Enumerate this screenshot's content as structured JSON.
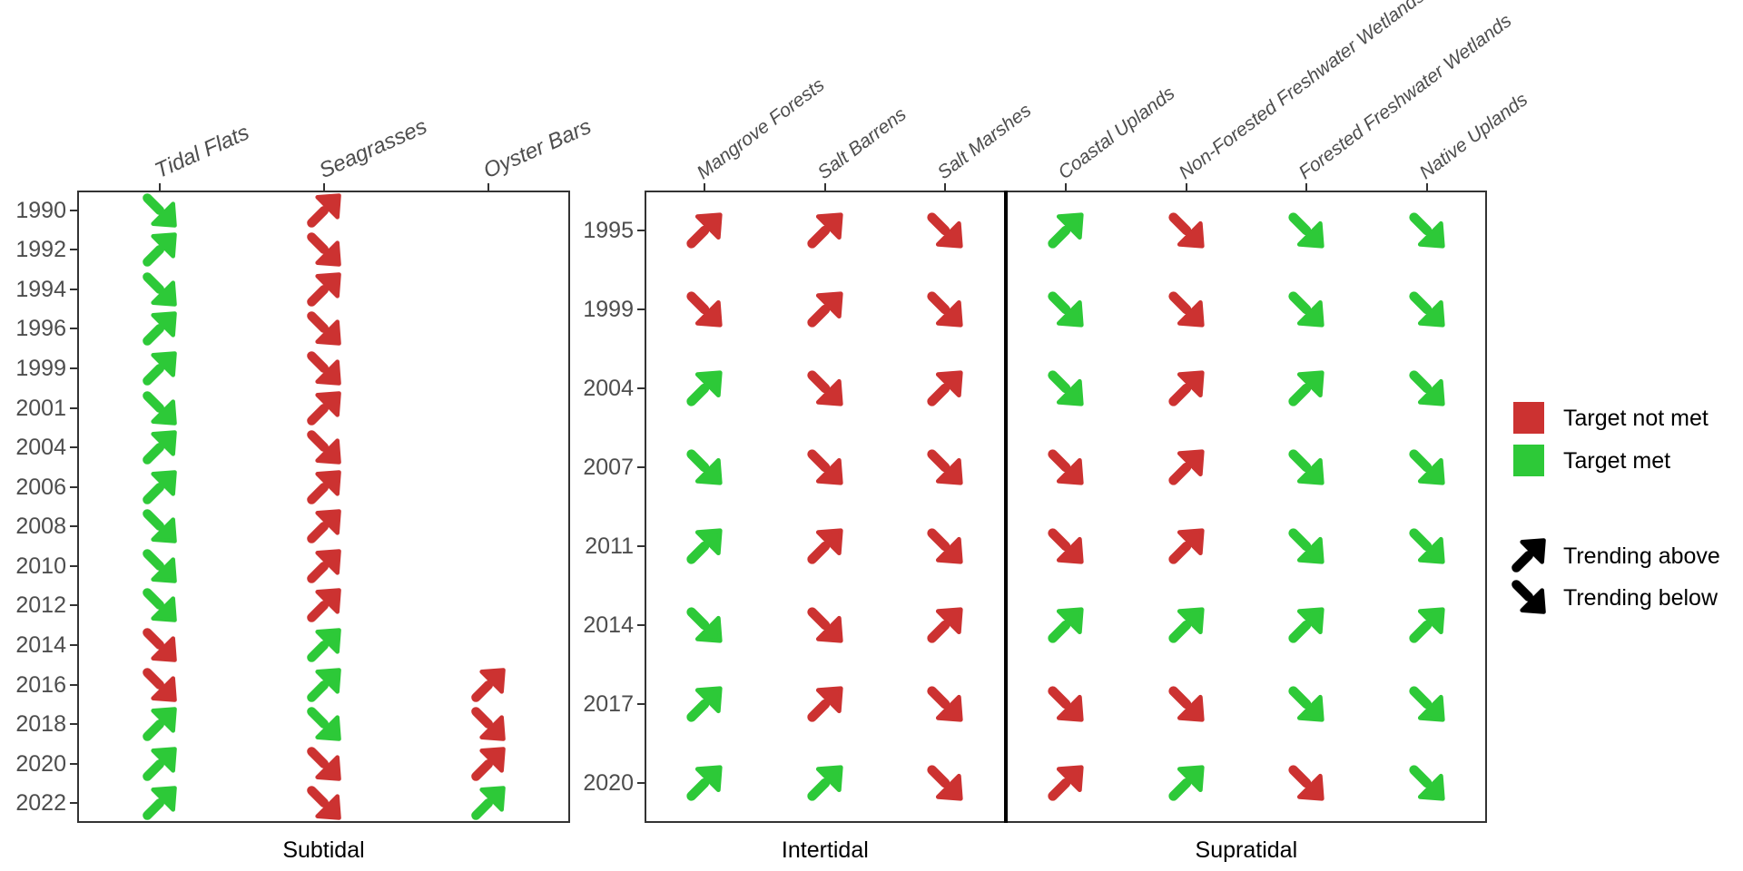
{
  "colors": {
    "target_met": "#2DC938",
    "target_not_met": "#CC3231",
    "trend_arrow_black": "#000000",
    "axis_text": "#4d4d4d",
    "panel_border": "#333333"
  },
  "legend": {
    "items": [
      {
        "swatch": "square",
        "color_key": "target_not_met",
        "label": "Target not met"
      },
      {
        "swatch": "square",
        "color_key": "target_met",
        "label": "Target met"
      },
      {
        "swatch": "arrow-ne",
        "color_key": "trend_arrow_black",
        "label": "Trending above"
      },
      {
        "swatch": "arrow-se",
        "color_key": "trend_arrow_black",
        "label": "Trending below"
      }
    ]
  },
  "chart_data": {
    "type": "heatmap",
    "glyph": "trend-arrow-matrix",
    "cell_code_key": {
      "first_char": {
        "a": "trending above (NE arrow)",
        "b": "trending below (SE arrow)"
      },
      "second_char": {
        "m": "target met (green)",
        "n": "target not met (red)"
      }
    },
    "panels": [
      {
        "facets": [
          {
            "label": "Subtidal",
            "columns": 3
          }
        ],
        "years": [
          "1990",
          "1992",
          "1994",
          "1996",
          "1999",
          "2001",
          "2004",
          "2006",
          "2008",
          "2010",
          "2012",
          "2014",
          "2016",
          "2018",
          "2020",
          "2022"
        ],
        "columns": [
          {
            "name": "Tidal Flats",
            "values": [
              "bm",
              "am",
              "bm",
              "am",
              "am",
              "bm",
              "am",
              "am",
              "bm",
              "bm",
              "bm",
              "bn",
              "bn",
              "am",
              "am",
              "am"
            ]
          },
          {
            "name": "Seagrasses",
            "values": [
              "an",
              "bn",
              "an",
              "bn",
              "bn",
              "an",
              "bn",
              "an",
              "an",
              "an",
              "an",
              "am",
              "am",
              "bm",
              "bn",
              "bn"
            ]
          },
          {
            "name": "Oyster Bars",
            "values": [
              null,
              null,
              null,
              null,
              null,
              null,
              null,
              null,
              null,
              null,
              null,
              null,
              "an",
              "bn",
              "an",
              "am"
            ]
          }
        ]
      },
      {
        "facets": [
          {
            "label": "Intertidal",
            "columns": 3
          },
          {
            "label": "Supratidal",
            "columns": 4
          }
        ],
        "years": [
          "1995",
          "1999",
          "2004",
          "2007",
          "2011",
          "2014",
          "2017",
          "2020"
        ],
        "columns": [
          {
            "name": "Mangrove Forests",
            "values": [
              "an",
              "bn",
              "am",
              "bm",
              "am",
              "bm",
              "am",
              "am"
            ]
          },
          {
            "name": "Salt Barrens",
            "values": [
              "an",
              "an",
              "bn",
              "bn",
              "an",
              "bn",
              "an",
              "am"
            ]
          },
          {
            "name": "Salt Marshes",
            "values": [
              "bn",
              "bn",
              "an",
              "bn",
              "bn",
              "an",
              "bn",
              "bn"
            ]
          },
          {
            "name": "Coastal Uplands",
            "values": [
              "am",
              "bm",
              "bm",
              "bn",
              "bn",
              "am",
              "bn",
              "an"
            ]
          },
          {
            "name": "Non-Forested Freshwater Wetlands",
            "values": [
              "bn",
              "bn",
              "an",
              "an",
              "an",
              "am",
              "bn",
              "am"
            ]
          },
          {
            "name": "Forested Freshwater Wetlands",
            "values": [
              "bm",
              "bm",
              "am",
              "bm",
              "bm",
              "am",
              "bm",
              "bn"
            ]
          },
          {
            "name": "Native Uplands",
            "values": [
              "bm",
              "bm",
              "bm",
              "bm",
              "bm",
              "am",
              "bm",
              "bm"
            ]
          }
        ]
      }
    ]
  }
}
